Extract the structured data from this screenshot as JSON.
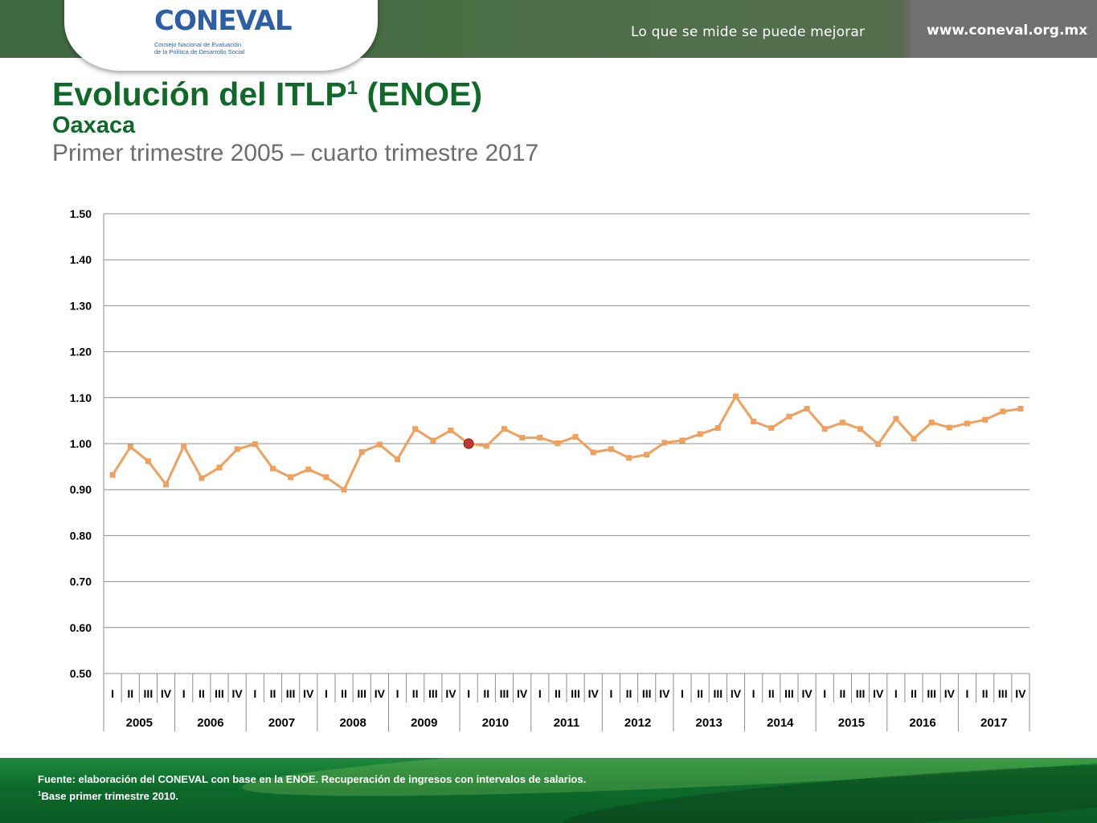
{
  "header": {
    "logo_text": "CONEVAL",
    "logo_subtitle_line1": "Consejo Nacional de Evaluación",
    "logo_subtitle_line2": "de la Política de Desarrollo Social",
    "slogan": "Lo que se mide se puede mejorar",
    "url": "www.coneval.org.mx"
  },
  "slide": {
    "title": "Evolución del ITLP",
    "title_sup": "1",
    "title_suffix": " (ENOE)",
    "subtitle": "Oaxaca",
    "period": "Primer trimestre 2005 – cuarto trimestre 2017"
  },
  "footer": {
    "source": "Fuente: elaboración del CONEVAL con base en la ENOE. Recuperación de ingresos con intervalos de salarios.",
    "note_sup": "1",
    "note": "Base primer trimestre 2010."
  },
  "chart_data": {
    "type": "line",
    "title": "",
    "xlabel": "",
    "ylabel": "",
    "ylim": [
      0.5,
      1.5
    ],
    "yticks": [
      "0.50",
      "0.60",
      "0.70",
      "0.80",
      "0.90",
      "1.00",
      "1.10",
      "1.20",
      "1.30",
      "1.40",
      "1.50"
    ],
    "grid": true,
    "line_color": "#f0a05a",
    "highlight_color": "#c0392b",
    "highlight_index": 20,
    "years": [
      "2005",
      "2006",
      "2007",
      "2008",
      "2009",
      "2010",
      "2011",
      "2012",
      "2013",
      "2014",
      "2015",
      "2016",
      "2017"
    ],
    "quarters": [
      "I",
      "II",
      "III",
      "IV"
    ],
    "series": [
      {
        "values": [
          0.932,
          0.993,
          0.962,
          0.911,
          0.995,
          0.925,
          0.948,
          0.988,
          0.999,
          0.946,
          0.927,
          0.944,
          0.927,
          0.9,
          0.982,
          0.998,
          0.966,
          1.032,
          1.007,
          1.029,
          1.0,
          0.995,
          1.032,
          1.013,
          1.013,
          1.001,
          1.015,
          0.981,
          0.988,
          0.969,
          0.976,
          1.002,
          1.007,
          1.021,
          1.034,
          1.103,
          1.048,
          1.034,
          1.059,
          1.076,
          1.032,
          1.046,
          1.032,
          0.999,
          1.054,
          1.011,
          1.046,
          1.035,
          1.044,
          1.052,
          1.07,
          1.076
        ]
      }
    ]
  }
}
